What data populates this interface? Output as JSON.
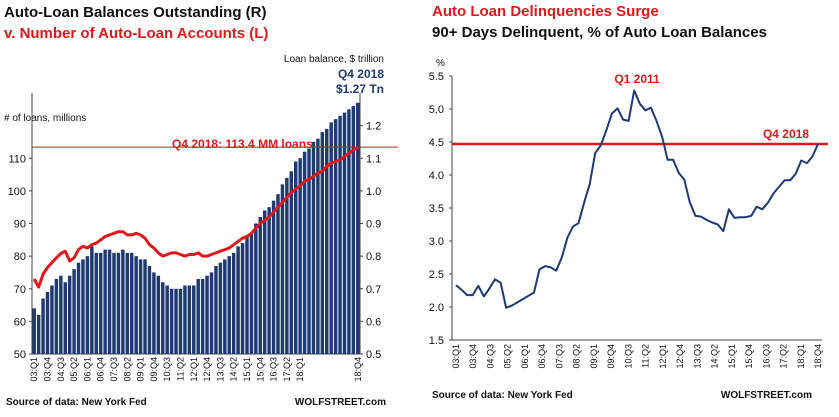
{
  "chart_data": [
    {
      "type": "bar",
      "title": "Auto-Loan Balances Outstanding (R)",
      "subtitle": "v. Number of Auto-Loan Accounts (L)",
      "left_axis_label": "# of loans, millions",
      "right_axis_label": "Loan balance, $ trillion",
      "balance_callout_period": "Q4 2018",
      "balance_callout_value": "$1.27 Tn",
      "reference_line_label": "Q4 2018: 113.4 MM loans",
      "reference_line_value": 113.4,
      "ylim_left": [
        50,
        130
      ],
      "ylim_right": [
        0.5,
        1.3
      ],
      "left_ticks": [
        50,
        60,
        70,
        80,
        90,
        100,
        110
      ],
      "right_ticks": [
        0.5,
        0.6,
        0.7,
        0.8,
        0.9,
        1.0,
        1.1,
        1.2
      ],
      "x_tick_labels": [
        "03:Q1",
        "03:Q4",
        "04:Q3",
        "05:Q2",
        "06:Q1",
        "06:Q4",
        "07:Q3",
        "08:Q2",
        "09:Q1",
        "09:Q4",
        "10:Q3",
        "11:Q2",
        "12:Q1",
        "12:Q4",
        "13:Q3",
        "14:Q2",
        "15:Q1",
        "15:Q4",
        "16:Q3",
        "17:Q2",
        "18:Q1",
        "18:Q4"
      ],
      "x_start": "03:Q1",
      "series": [
        {
          "name": "Loan balance, $ trillion",
          "type": "bar",
          "axis": "right",
          "values": [
            0.64,
            0.62,
            0.67,
            0.69,
            0.71,
            0.73,
            0.74,
            0.72,
            0.74,
            0.76,
            0.78,
            0.79,
            0.8,
            0.83,
            0.81,
            0.81,
            0.82,
            0.82,
            0.81,
            0.81,
            0.82,
            0.81,
            0.81,
            0.8,
            0.79,
            0.79,
            0.77,
            0.75,
            0.74,
            0.72,
            0.71,
            0.7,
            0.7,
            0.7,
            0.71,
            0.71,
            0.71,
            0.73,
            0.73,
            0.74,
            0.75,
            0.77,
            0.78,
            0.79,
            0.8,
            0.81,
            0.83,
            0.84,
            0.86,
            0.87,
            0.9,
            0.92,
            0.94,
            0.95,
            0.97,
            0.99,
            1.02,
            1.04,
            1.06,
            1.09,
            1.1,
            1.12,
            1.13,
            1.15,
            1.16,
            1.18,
            1.19,
            1.21,
            1.22,
            1.23,
            1.24,
            1.25,
            1.26,
            1.27
          ]
        },
        {
          "name": "# of loans, millions",
          "type": "line",
          "axis": "left",
          "values": [
            73.0,
            70.5,
            74.5,
            76.5,
            78.0,
            79.5,
            80.8,
            81.5,
            78.5,
            79.5,
            82.0,
            83.0,
            82.5,
            83.5,
            84.0,
            85.0,
            86.0,
            86.5,
            87.0,
            87.5,
            87.5,
            86.5,
            86.5,
            87.0,
            86.5,
            85.5,
            83.5,
            82.5,
            81.0,
            80.0,
            80.5,
            81.0,
            81.0,
            80.5,
            80.0,
            80.5,
            80.5,
            81.0,
            80.0,
            80.0,
            80.5,
            81.0,
            81.5,
            82.0,
            82.5,
            83.5,
            84.5,
            85.5,
            86.0,
            87.0,
            88.5,
            90.0,
            91.0,
            92.0,
            93.5,
            95.0,
            96.5,
            98.0,
            99.5,
            100.5,
            101.5,
            103.0,
            103.5,
            104.5,
            105.5,
            106.0,
            107.5,
            108.5,
            109.0,
            109.5,
            110.5,
            111.5,
            112.5,
            113.4
          ]
        }
      ],
      "source": "Source of data: New York Fed",
      "watermark": "WOLFSTREET.com"
    },
    {
      "type": "line",
      "title": "Auto Loan Delinquencies Surge",
      "subtitle": "90+ Days Delinquent, % of Auto Loan Balances",
      "ylabel": "%",
      "ylim": [
        1.5,
        5.5
      ],
      "y_ticks": [
        1.5,
        2.0,
        2.5,
        3.0,
        3.5,
        4.0,
        4.5,
        5.0,
        5.5
      ],
      "y_tick_labels": [
        "1.5",
        "2.0",
        "2.5",
        "3.0",
        "3.5",
        "4.0",
        "4.5",
        "5.0",
        "5.5"
      ],
      "x_tick_labels": [
        "03:Q1",
        "03:Q4",
        "04:Q3",
        "05:Q2",
        "06:Q1",
        "06:Q4",
        "07:Q3",
        "08:Q2",
        "09:Q1",
        "09:Q4",
        "10:Q3",
        "11:Q2",
        "12:Q1",
        "12:Q4",
        "13:Q3",
        "14:Q2",
        "15:Q1",
        "15:Q4",
        "16:Q3",
        "17:Q2",
        "18:Q1",
        "18:Q4"
      ],
      "x_start": "03:Q1",
      "reference_line_value": 4.47,
      "peak_label": "Q1 2011",
      "end_label": "Q4 2018",
      "series": [
        {
          "name": "90+ Days Delinquent",
          "values": [
            2.33,
            2.26,
            2.18,
            2.18,
            2.32,
            2.16,
            2.28,
            2.42,
            2.37,
            1.99,
            2.02,
            2.07,
            2.12,
            2.17,
            2.22,
            2.57,
            2.62,
            2.6,
            2.55,
            2.75,
            3.05,
            3.22,
            3.27,
            3.58,
            3.86,
            4.33,
            4.45,
            4.68,
            4.93,
            5.01,
            4.84,
            4.82,
            5.28,
            5.08,
            4.98,
            5.02,
            4.82,
            4.58,
            4.23,
            4.23,
            4.03,
            3.93,
            3.58,
            3.38,
            3.37,
            3.32,
            3.28,
            3.25,
            3.15,
            3.48,
            3.35,
            3.36,
            3.36,
            3.38,
            3.52,
            3.48,
            3.58,
            3.72,
            3.82,
            3.92,
            3.92,
            4.02,
            4.22,
            4.18,
            4.28,
            4.47
          ]
        }
      ],
      "source": "Source of data: New York Fed",
      "watermark": "WOLFSTREET.com"
    }
  ]
}
